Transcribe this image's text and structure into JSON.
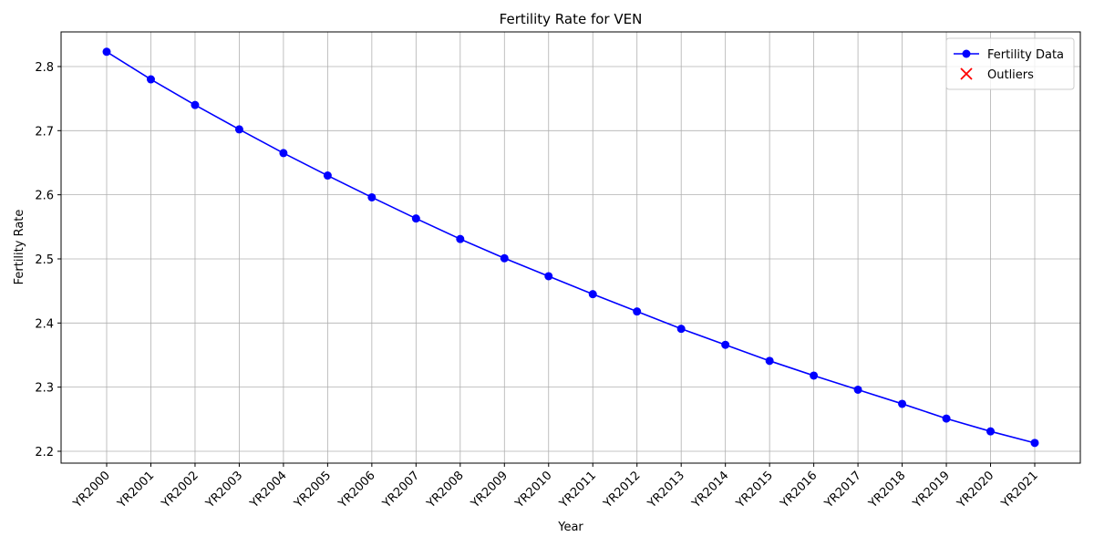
{
  "chart_data": {
    "type": "line",
    "title": "Fertility Rate for VEN",
    "x_label": "Year",
    "y_label": "Fertility Rate",
    "categories": [
      "YR2000",
      "YR2001",
      "YR2002",
      "YR2003",
      "YR2004",
      "YR2005",
      "YR2006",
      "YR2007",
      "YR2008",
      "YR2009",
      "YR2010",
      "YR2011",
      "YR2012",
      "YR2013",
      "YR2014",
      "YR2015",
      "YR2016",
      "YR2017",
      "YR2018",
      "YR2019",
      "YR2020",
      "YR2021"
    ],
    "series": [
      {
        "name": "Fertility Data",
        "color": "#0000ff",
        "marker": "o",
        "values": [
          2.823,
          2.78,
          2.74,
          2.702,
          2.665,
          2.63,
          2.596,
          2.563,
          2.531,
          2.501,
          2.473,
          2.445,
          2.418,
          2.391,
          2.366,
          2.341,
          2.318,
          2.296,
          2.274,
          2.251,
          2.231,
          2.213
        ]
      },
      {
        "name": "Outliers",
        "color": "#ff0000",
        "marker": "x",
        "values": [
          null,
          null,
          null,
          null,
          null,
          null,
          null,
          null,
          null,
          null,
          null,
          null,
          null,
          null,
          null,
          null,
          null,
          null,
          null,
          null,
          null,
          null
        ]
      }
    ],
    "ylim": [
      2.1815,
      2.854
    ],
    "yticks": [
      2.2,
      2.3,
      2.4,
      2.5,
      2.6,
      2.7,
      2.8
    ],
    "grid": true,
    "legend": "upper right"
  }
}
